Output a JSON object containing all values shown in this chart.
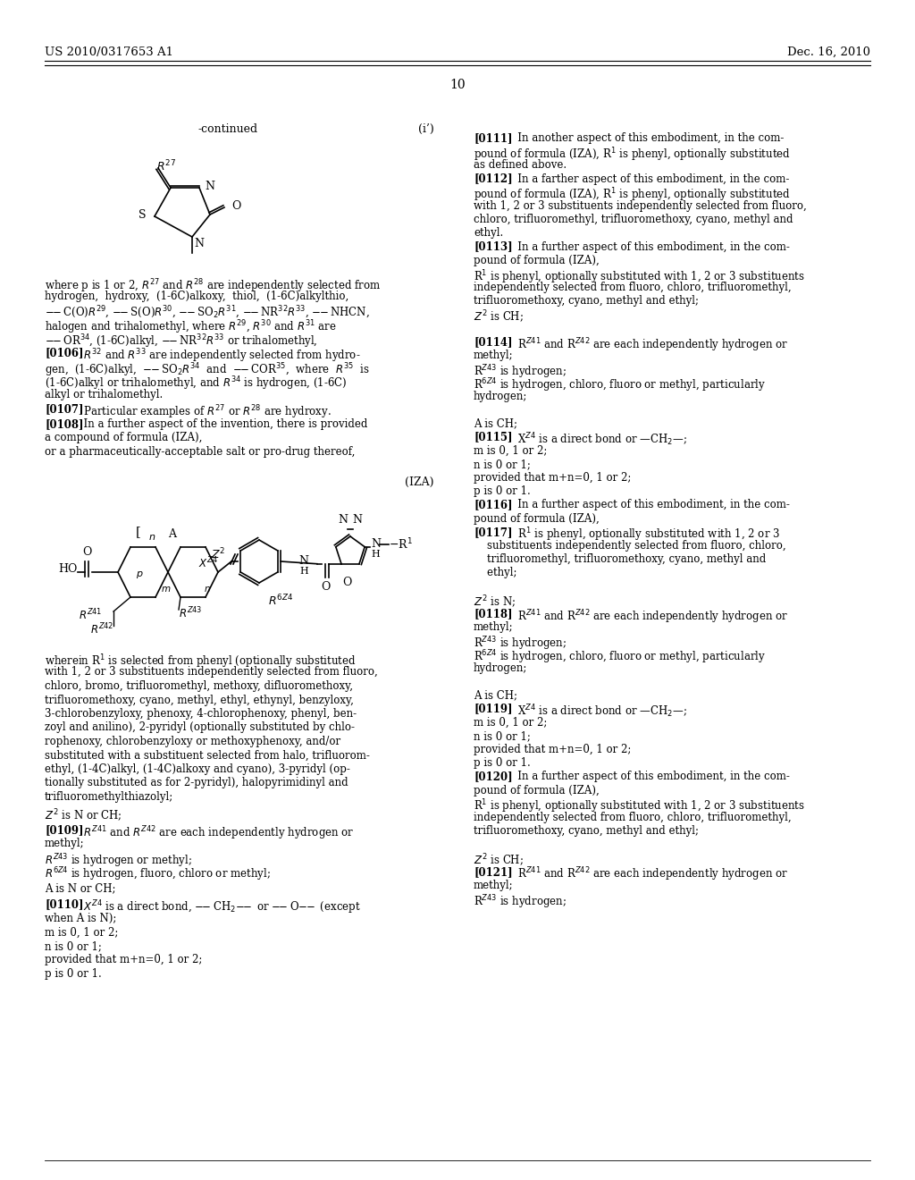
{
  "background_color": "#ffffff",
  "page_header_left": "US 2010/0317653 A1",
  "page_header_right": "Dec. 16, 2010",
  "page_number": "10",
  "continued_label": "-continued",
  "formula_i_prime": "(i’)",
  "formula_IZA": "(IZA)"
}
